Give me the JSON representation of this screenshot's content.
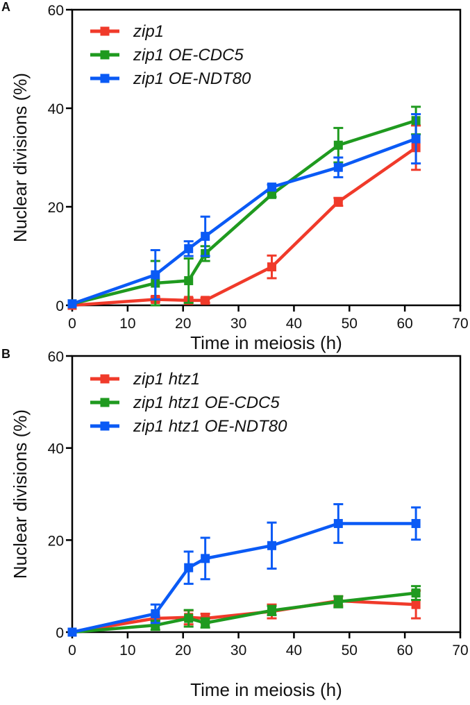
{
  "chart_data": [
    {
      "panel": "A",
      "type": "line",
      "xlabel": "Time in meiosis (h)",
      "ylabel": "Nuclear divisions (%)",
      "xlim": [
        0,
        70
      ],
      "ylim": [
        0,
        60
      ],
      "xticks": [
        0,
        10,
        20,
        30,
        40,
        50,
        60,
        70
      ],
      "yticks": [
        0,
        20,
        40,
        60
      ],
      "grid": false,
      "legend": "top-left",
      "x": [
        0,
        15,
        21,
        24,
        36,
        48,
        62
      ],
      "series": [
        {
          "name": "zip1",
          "color": "#f03a2a",
          "values": [
            0,
            1.2,
            1,
            1,
            7.8,
            21,
            32
          ],
          "errors": [
            0,
            0.5,
            0.5,
            0.5,
            2.3,
            0.8,
            4.5
          ]
        },
        {
          "name": "zip1 OE-CDC5",
          "color": "#1f9a1f",
          "values": [
            0.3,
            4.5,
            5,
            10.5,
            22.5,
            32.5,
            37.5
          ],
          "errors": [
            0,
            4.5,
            4.5,
            1.5,
            0.5,
            3.5,
            2.8
          ]
        },
        {
          "name": "zip1 OE-NDT80",
          "color": "#0a5af5",
          "values": [
            0.3,
            6.2,
            11.5,
            14,
            24,
            28,
            33.8
          ],
          "errors": [
            0,
            5,
            1.5,
            4,
            0.5,
            2,
            5
          ]
        }
      ]
    },
    {
      "panel": "B",
      "type": "line",
      "xlabel": "Time in meiosis (h)",
      "ylabel": "Nuclear divisions (%)",
      "xlim": [
        0,
        70
      ],
      "ylim": [
        0,
        60
      ],
      "xticks": [
        0,
        10,
        20,
        30,
        40,
        50,
        60,
        70
      ],
      "yticks": [
        0,
        20,
        40,
        60
      ],
      "grid": false,
      "legend": "top-left",
      "x": [
        0,
        15,
        21,
        24,
        36,
        48,
        62
      ],
      "series": [
        {
          "name": "zip1 htz1",
          "color": "#f03a2a",
          "values": [
            0,
            3,
            3.2,
            3,
            4.5,
            6.8,
            6
          ],
          "errors": [
            0,
            0.5,
            1.5,
            1,
            1.5,
            1,
            3
          ]
        },
        {
          "name": "zip1 htz1 OE-CDC5",
          "color": "#1f9a1f",
          "values": [
            0,
            1.5,
            3,
            2,
            4.7,
            6.6,
            8.5
          ],
          "errors": [
            0,
            1,
            1.8,
            1,
            1,
            1.2,
            1.5
          ]
        },
        {
          "name": "zip1 htz1 OE-NDT80",
          "color": "#0a5af5",
          "values": [
            0,
            4,
            14,
            16,
            18.8,
            23.6,
            23.6
          ],
          "errors": [
            0,
            2,
            3.5,
            4.5,
            5,
            4.2,
            3.5
          ]
        }
      ]
    }
  ]
}
